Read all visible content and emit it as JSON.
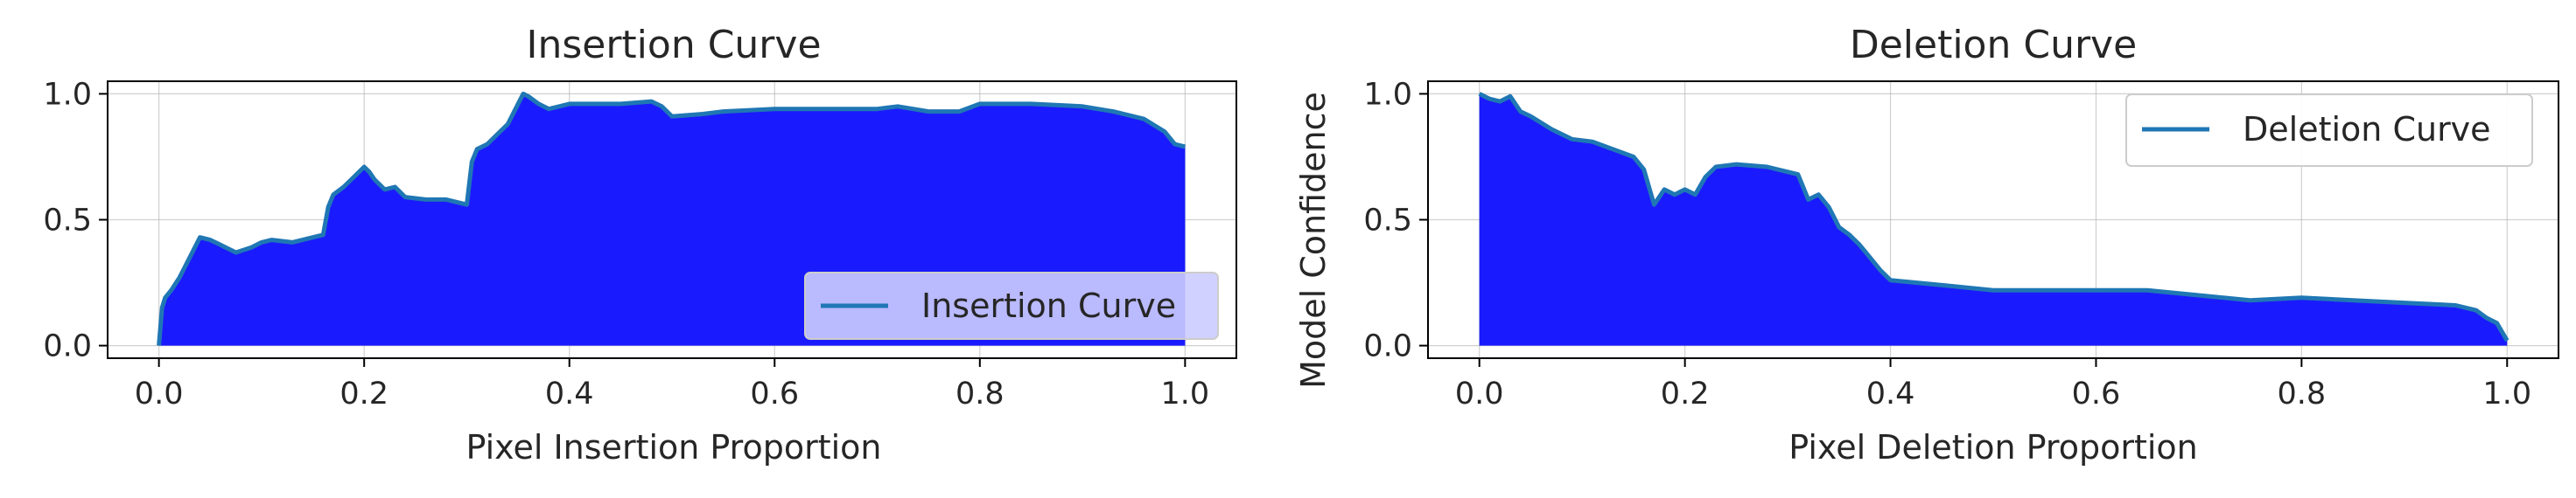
{
  "chart_data": [
    {
      "type": "area",
      "title": "Insertion Curve",
      "xlabel": "Pixel Insertion Proportion",
      "ylabel": "",
      "xlim": [
        -0.05,
        1.05
      ],
      "ylim": [
        -0.05,
        1.05
      ],
      "xticks": [
        "0.0",
        "0.2",
        "0.4",
        "0.6",
        "0.8",
        "1.0"
      ],
      "yticks": [
        "0.0",
        "0.5",
        "1.0"
      ],
      "grid": true,
      "legend_position": "lower-right",
      "fill_color": "#1a1aff",
      "line_color": "#1f77b4",
      "series": [
        {
          "name": "Insertion Curve",
          "x": [
            0.0,
            0.003,
            0.006,
            0.012,
            0.02,
            0.03,
            0.04,
            0.05,
            0.06,
            0.075,
            0.09,
            0.1,
            0.11,
            0.13,
            0.15,
            0.16,
            0.165,
            0.17,
            0.18,
            0.19,
            0.2,
            0.205,
            0.21,
            0.22,
            0.23,
            0.24,
            0.26,
            0.28,
            0.3,
            0.305,
            0.31,
            0.32,
            0.33,
            0.34,
            0.35,
            0.355,
            0.36,
            0.37,
            0.38,
            0.4,
            0.45,
            0.48,
            0.49,
            0.5,
            0.53,
            0.55,
            0.6,
            0.65,
            0.7,
            0.72,
            0.75,
            0.78,
            0.8,
            0.85,
            0.9,
            0.93,
            0.96,
            0.98,
            0.99,
            1.0
          ],
          "y": [
            0.0,
            0.15,
            0.19,
            0.22,
            0.27,
            0.35,
            0.43,
            0.42,
            0.4,
            0.37,
            0.39,
            0.41,
            0.42,
            0.41,
            0.43,
            0.44,
            0.55,
            0.6,
            0.63,
            0.67,
            0.71,
            0.69,
            0.66,
            0.62,
            0.63,
            0.59,
            0.58,
            0.58,
            0.56,
            0.73,
            0.78,
            0.8,
            0.84,
            0.88,
            0.96,
            1.0,
            0.99,
            0.96,
            0.94,
            0.96,
            0.96,
            0.97,
            0.95,
            0.91,
            0.92,
            0.93,
            0.94,
            0.94,
            0.94,
            0.95,
            0.93,
            0.93,
            0.96,
            0.96,
            0.95,
            0.93,
            0.9,
            0.85,
            0.8,
            0.79
          ]
        }
      ]
    },
    {
      "type": "area",
      "title": "Deletion Curve",
      "xlabel": "Pixel Deletion Proportion",
      "ylabel": "Model Confidence",
      "xlim": [
        -0.05,
        1.05
      ],
      "ylim": [
        -0.05,
        1.05
      ],
      "xticks": [
        "0.0",
        "0.2",
        "0.4",
        "0.6",
        "0.8",
        "1.0"
      ],
      "yticks": [
        "0.0",
        "0.5",
        "1.0"
      ],
      "grid": true,
      "legend_position": "upper-right",
      "fill_color": "#1a1aff",
      "line_color": "#1f77b4",
      "series": [
        {
          "name": "Deletion Curve",
          "x": [
            0.0,
            0.01,
            0.02,
            0.03,
            0.04,
            0.05,
            0.07,
            0.09,
            0.11,
            0.13,
            0.15,
            0.16,
            0.17,
            0.18,
            0.19,
            0.2,
            0.21,
            0.22,
            0.23,
            0.25,
            0.28,
            0.31,
            0.32,
            0.33,
            0.34,
            0.35,
            0.36,
            0.37,
            0.38,
            0.39,
            0.4,
            0.45,
            0.5,
            0.55,
            0.6,
            0.65,
            0.7,
            0.75,
            0.8,
            0.85,
            0.9,
            0.95,
            0.97,
            0.98,
            0.99,
            1.0
          ],
          "y": [
            1.0,
            0.98,
            0.97,
            0.99,
            0.93,
            0.91,
            0.86,
            0.82,
            0.81,
            0.78,
            0.75,
            0.7,
            0.56,
            0.62,
            0.6,
            0.62,
            0.6,
            0.67,
            0.71,
            0.72,
            0.71,
            0.68,
            0.58,
            0.6,
            0.55,
            0.47,
            0.44,
            0.4,
            0.35,
            0.3,
            0.26,
            0.24,
            0.22,
            0.22,
            0.22,
            0.22,
            0.2,
            0.18,
            0.19,
            0.18,
            0.17,
            0.16,
            0.14,
            0.11,
            0.09,
            0.02
          ]
        }
      ]
    }
  ]
}
